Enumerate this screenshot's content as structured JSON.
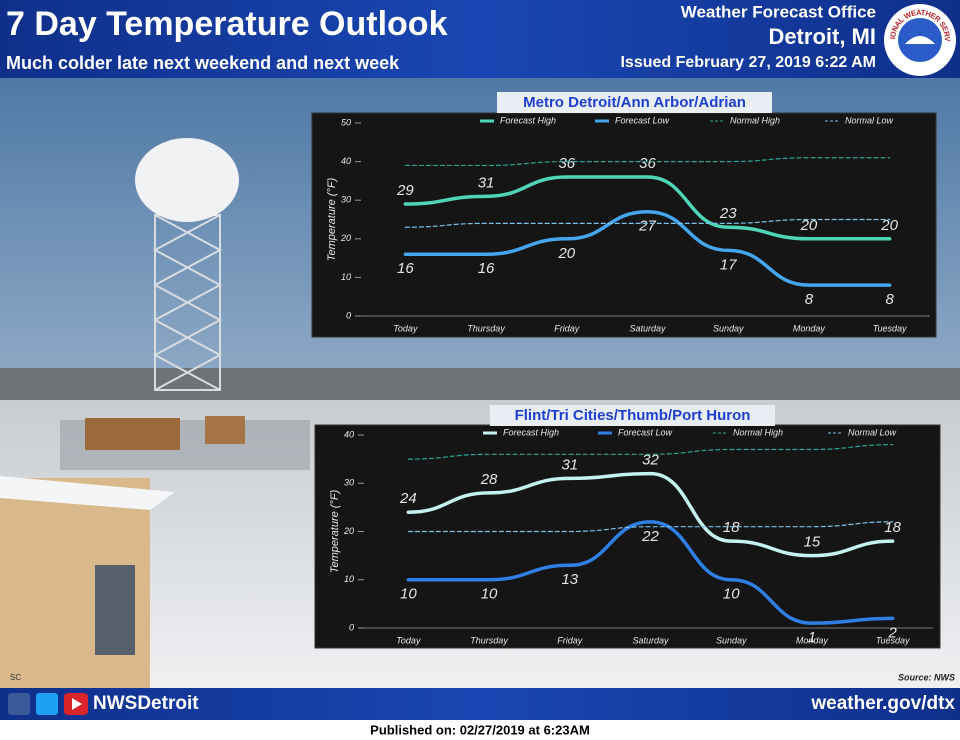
{
  "header": {
    "title": "7 Day Temperature Outlook",
    "subtitle": "Much colder late next weekend and next week",
    "office": "Weather Forecast Office",
    "location": "Detroit, MI",
    "issued": "Issued February 27, 2019 6:22 AM",
    "logo": "NATIONAL WEATHER SERVICE"
  },
  "footer": {
    "photo_credit": "SC",
    "social": "NWSDetroit",
    "website": "weather.gov/dtx",
    "source": "Source: NWS",
    "published": "Published on: 02/27/2019 at 6:23AM"
  },
  "chart_data": [
    {
      "type": "line",
      "title": "Metro Detroit/Ann Arbor/Adrian",
      "y_label": "Temperature (°F)",
      "categories": [
        "Today",
        "Thursday",
        "Friday",
        "Saturday",
        "Sunday",
        "Monday",
        "Tuesday"
      ],
      "ylim": [
        0,
        50
      ],
      "yticks": [
        0,
        10,
        20,
        30,
        40,
        50
      ],
      "series": [
        {
          "name": "Forecast High",
          "color": "#4fd6b8",
          "style": "solid",
          "values": [
            29,
            31,
            36,
            36,
            23,
            20,
            20
          ]
        },
        {
          "name": "Forecast Low",
          "color": "#45a6ee",
          "style": "solid",
          "values": [
            16,
            16,
            20,
            27,
            17,
            8,
            8
          ]
        },
        {
          "name": "Normal High",
          "color": "#2aa593",
          "style": "dashed",
          "values": [
            39,
            39,
            40,
            40,
            40,
            41,
            41
          ]
        },
        {
          "name": "Normal Low",
          "color": "#7cc2ee",
          "style": "dashed",
          "values": [
            23,
            24,
            24,
            24,
            24,
            25,
            25
          ]
        }
      ]
    },
    {
      "type": "line",
      "title": "Flint/Tri Cities/Thumb/Port Huron",
      "y_label": "Temperature (°F)",
      "categories": [
        "Today",
        "Thursday",
        "Friday",
        "Saturday",
        "Sunday",
        "Monday",
        "Tuesday"
      ],
      "ylim": [
        0,
        40
      ],
      "yticks": [
        0,
        10,
        20,
        30,
        40
      ],
      "series": [
        {
          "name": "Forecast High",
          "color": "#c4f2ee",
          "style": "solid",
          "values": [
            24,
            28,
            31,
            32,
            18,
            15,
            18
          ]
        },
        {
          "name": "Forecast Low",
          "color": "#2f7fe4",
          "style": "solid",
          "values": [
            10,
            10,
            13,
            22,
            10,
            1,
            2
          ]
        },
        {
          "name": "Normal High",
          "color": "#2aa593",
          "style": "dashed",
          "values": [
            35,
            36,
            36,
            36,
            37,
            37,
            38
          ]
        },
        {
          "name": "Normal Low",
          "color": "#7cc2ee",
          "style": "dashed",
          "values": [
            20,
            20,
            20,
            21,
            21,
            21,
            22
          ]
        }
      ]
    }
  ]
}
